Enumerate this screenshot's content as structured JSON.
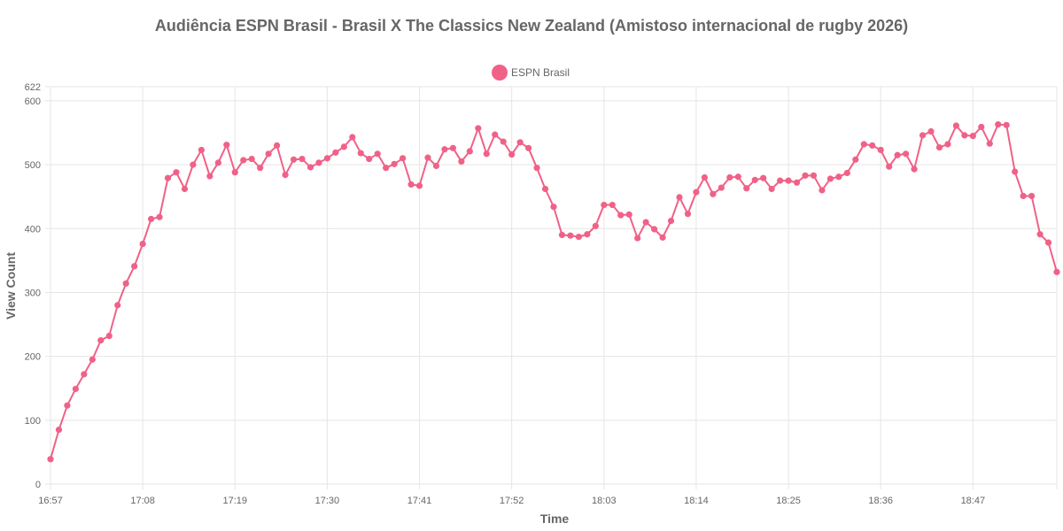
{
  "chart_data": {
    "type": "line",
    "title": "Audiência ESPN Brasil - Brasil X The Classics New Zealand (Amistoso internacional de rugby 2026)",
    "xlabel": "Time",
    "ylabel": "View Count",
    "ylim": [
      0,
      622
    ],
    "y_ticks": [
      0,
      100,
      200,
      300,
      400,
      500,
      600,
      622
    ],
    "x_ticks": [
      "16:57",
      "17:08",
      "17:19",
      "17:30",
      "17:41",
      "17:52",
      "18:03",
      "18:14",
      "18:25",
      "18:36",
      "18:47"
    ],
    "x_tick_step": 11,
    "legend_position": "top",
    "grid": true,
    "series": [
      {
        "name": "ESPN Brasil",
        "color": "#f06188",
        "values": [
          39,
          85,
          123,
          149,
          172,
          195,
          225,
          232,
          280,
          314,
          341,
          376,
          415,
          418,
          479,
          488,
          462,
          500,
          523,
          482,
          503,
          531,
          488,
          507,
          509,
          495,
          517,
          530,
          484,
          508,
          509,
          496,
          503,
          510,
          519,
          528,
          543,
          518,
          509,
          517,
          495,
          501,
          510,
          469,
          467,
          511,
          498,
          524,
          526,
          505,
          521,
          557,
          517,
          547,
          536,
          516,
          535,
          526,
          495,
          462,
          434,
          390,
          389,
          387,
          391,
          404,
          437,
          437,
          421,
          422,
          385,
          410,
          399,
          386,
          412,
          449,
          423,
          457,
          480,
          454,
          464,
          480,
          481,
          463,
          476,
          479,
          462,
          475,
          475,
          472,
          483,
          483,
          460,
          478,
          481,
          487,
          508,
          532,
          530,
          523,
          497,
          515,
          517,
          493,
          546,
          552,
          527,
          532,
          561,
          546,
          545,
          559,
          533,
          563,
          562,
          489,
          451,
          451,
          391,
          378,
          332
        ]
      }
    ]
  }
}
